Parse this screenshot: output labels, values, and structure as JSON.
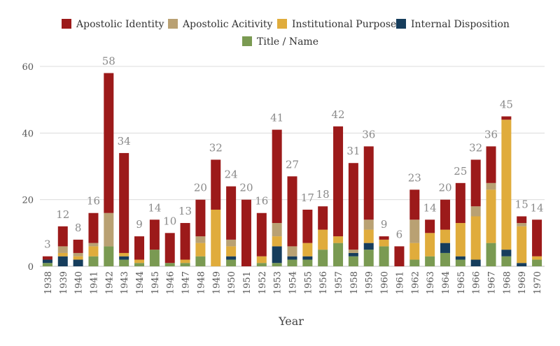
{
  "chart_data": {
    "type": "bar",
    "stacked": true,
    "xlabel": "Year",
    "ylabel": "",
    "ylim": [
      0,
      65
    ],
    "yticks": [
      0,
      20,
      40,
      60
    ],
    "grid": "horizontal",
    "legend_position": "top",
    "categories": [
      "1938",
      "1939",
      "1940",
      "1941",
      "1942",
      "1943",
      "1944",
      "1945",
      "1946",
      "1947",
      "1948",
      "1949",
      "1950",
      "1951",
      "1952",
      "1953",
      "1954",
      "1955",
      "1956",
      "1957",
      "1958",
      "1959",
      "1960",
      "1961",
      "1962",
      "1963",
      "1964",
      "1965",
      "1966",
      "1967",
      "1968",
      "1969",
      "1970"
    ],
    "totals": [
      3,
      12,
      8,
      16,
      58,
      34,
      9,
      14,
      10,
      13,
      20,
      32,
      24,
      20,
      16,
      41,
      27,
      17,
      18,
      42,
      31,
      36,
      9,
      6,
      23,
      14,
      20,
      25,
      32,
      36,
      45,
      15,
      14
    ],
    "series": [
      {
        "name": "Title / Name",
        "color": "#7a9a52",
        "values": [
          1,
          0,
          0,
          3,
          6,
          2,
          1,
          5,
          1,
          1,
          3,
          0,
          2,
          0,
          1,
          1,
          2,
          2,
          5,
          7,
          3,
          5,
          6,
          0,
          2,
          3,
          4,
          2,
          0,
          7,
          3,
          0,
          2
        ]
      },
      {
        "name": "Internal Disposition",
        "color": "#163d5c",
        "values": [
          1,
          3,
          2,
          0,
          0,
          1,
          0,
          0,
          0,
          0,
          0,
          0,
          1,
          0,
          0,
          5,
          1,
          1,
          0,
          0,
          1,
          2,
          0,
          0,
          0,
          0,
          3,
          1,
          2,
          0,
          2,
          1,
          0
        ]
      },
      {
        "name": "Institutional Purpose",
        "color": "#e0ac3c",
        "values": [
          0,
          1,
          1,
          3,
          0,
          1,
          1,
          0,
          0,
          1,
          4,
          17,
          3,
          0,
          2,
          3,
          0,
          4,
          6,
          2,
          0,
          4,
          2,
          0,
          5,
          7,
          4,
          10,
          13,
          16,
          39,
          11,
          1
        ]
      },
      {
        "name": "Apostolic Acitivity",
        "color": "#b9a173",
        "values": [
          0,
          2,
          1,
          1,
          10,
          0,
          0,
          0,
          0,
          0,
          2,
          0,
          2,
          0,
          0,
          4,
          3,
          0,
          0,
          0,
          1,
          3,
          0,
          0,
          7,
          0,
          0,
          0,
          3,
          2,
          0,
          1,
          0
        ]
      },
      {
        "name": "Apostolic Identity",
        "color": "#9c1a1a",
        "values": [
          1,
          6,
          4,
          9,
          42,
          30,
          7,
          9,
          9,
          11,
          11,
          15,
          16,
          20,
          13,
          28,
          21,
          10,
          7,
          33,
          26,
          22,
          1,
          6,
          9,
          4,
          9,
          12,
          14,
          11,
          1,
          2,
          11
        ]
      }
    ]
  },
  "legend": {
    "row1": [
      "Apostolic Identity",
      "Apostolic Acitivity",
      "Institutional Purpose",
      "Internal Disposition"
    ],
    "row2": [
      "Title / Name"
    ]
  }
}
